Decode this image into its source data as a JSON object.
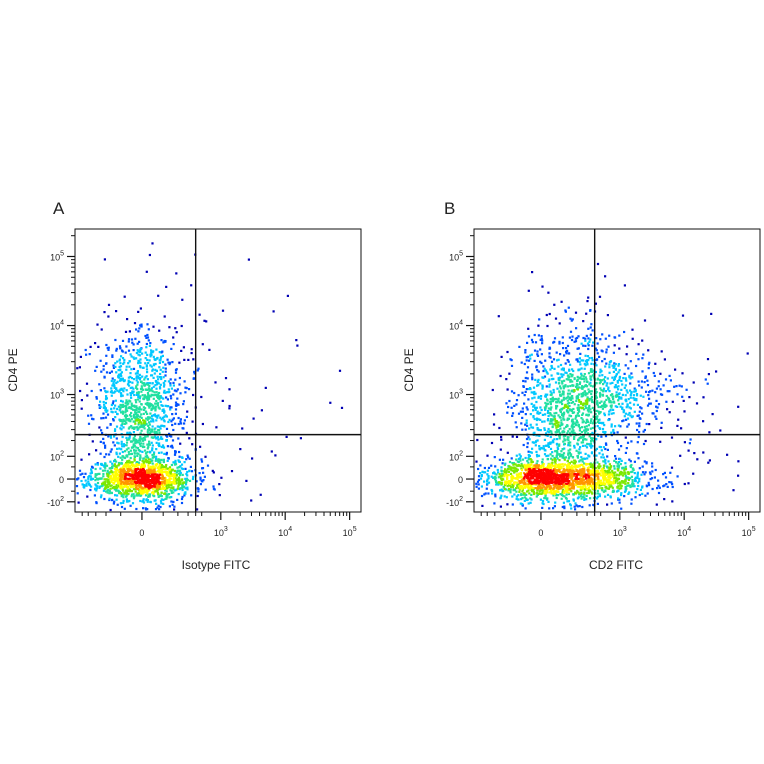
{
  "chart_data": [
    {
      "type": "scatter",
      "panel_label": "A",
      "xlabel": "Isotype FITC",
      "ylabel": "CD4 PE",
      "x_scale": "biexponential",
      "y_scale": "biexponential",
      "x_ticks": [
        {
          "value": 0,
          "base": "0",
          "exp": ""
        },
        {
          "value": 1000,
          "base": "10",
          "exp": "3"
        },
        {
          "value": 10000,
          "base": "10",
          "exp": "4"
        },
        {
          "value": 100000,
          "base": "10",
          "exp": "5"
        }
      ],
      "y_ticks": [
        {
          "value": -100,
          "base": "-10",
          "exp": "2"
        },
        {
          "value": 0,
          "base": "0",
          "exp": ""
        },
        {
          "value": 100,
          "base": "10",
          "exp": "2"
        },
        {
          "value": 1000,
          "base": "10",
          "exp": "3"
        },
        {
          "value": 10000,
          "base": "10",
          "exp": "4"
        },
        {
          "value": 100000,
          "base": "10",
          "exp": "5"
        }
      ],
      "quadrant_gate": {
        "x": 400,
        "y": 250
      },
      "populations": [
        {
          "x": 0,
          "y": 0,
          "count": 1150,
          "spread_x": 0.09,
          "spread_y": 0.07
        },
        {
          "x": 0,
          "y": 700,
          "count": 900,
          "spread_x": 0.08,
          "spread_y": 0.28
        },
        {
          "x": 0,
          "y": 100,
          "count": 350,
          "spread_x": 0.07,
          "spread_y": 0.35
        },
        {
          "x": 100,
          "y": 200,
          "count": 140,
          "spread_x": 0.3,
          "spread_y": 0.7
        }
      ],
      "colormap": [
        "#0000b4",
        "#0050ff",
        "#00c8ff",
        "#20e0a0",
        "#7ce800",
        "#ffff00",
        "#ff9600",
        "#ff0000"
      ]
    },
    {
      "type": "scatter",
      "panel_label": "B",
      "xlabel": "CD2 FITC",
      "ylabel": "CD4 PE",
      "x_scale": "biexponential",
      "y_scale": "biexponential",
      "x_ticks": [
        {
          "value": 0,
          "base": "0",
          "exp": ""
        },
        {
          "value": 1000,
          "base": "10",
          "exp": "3"
        },
        {
          "value": 10000,
          "base": "10",
          "exp": "4"
        },
        {
          "value": 100000,
          "base": "10",
          "exp": "5"
        }
      ],
      "y_ticks": [
        {
          "value": -100,
          "base": "-10",
          "exp": "2"
        },
        {
          "value": 0,
          "base": "0",
          "exp": ""
        },
        {
          "value": 100,
          "base": "10",
          "exp": "2"
        },
        {
          "value": 1000,
          "base": "10",
          "exp": "3"
        },
        {
          "value": 10000,
          "base": "10",
          "exp": "4"
        },
        {
          "value": 100000,
          "base": "10",
          "exp": "5"
        }
      ],
      "quadrant_gate": {
        "x": 400,
        "y": 250
      },
      "populations": [
        {
          "x": 0,
          "y": 0,
          "count": 1100,
          "spread_x": 0.11,
          "spread_y": 0.07
        },
        {
          "x": 150,
          "y": 700,
          "count": 950,
          "spread_x": 0.1,
          "spread_y": 0.28
        },
        {
          "x": 100,
          "y": 100,
          "count": 350,
          "spread_x": 0.08,
          "spread_y": 0.35
        },
        {
          "x": 700,
          "y": 0,
          "count": 420,
          "spread_x": 0.1,
          "spread_y": 0.07
        },
        {
          "x": 900,
          "y": 1000,
          "count": 280,
          "spread_x": 0.12,
          "spread_y": 0.12
        },
        {
          "x": 600,
          "y": 300,
          "count": 220,
          "spread_x": 0.22,
          "spread_y": 0.45
        }
      ],
      "colormap": [
        "#0000b4",
        "#0050ff",
        "#00c8ff",
        "#20e0a0",
        "#7ce800",
        "#ffff00",
        "#ff9600",
        "#ff0000"
      ]
    }
  ]
}
